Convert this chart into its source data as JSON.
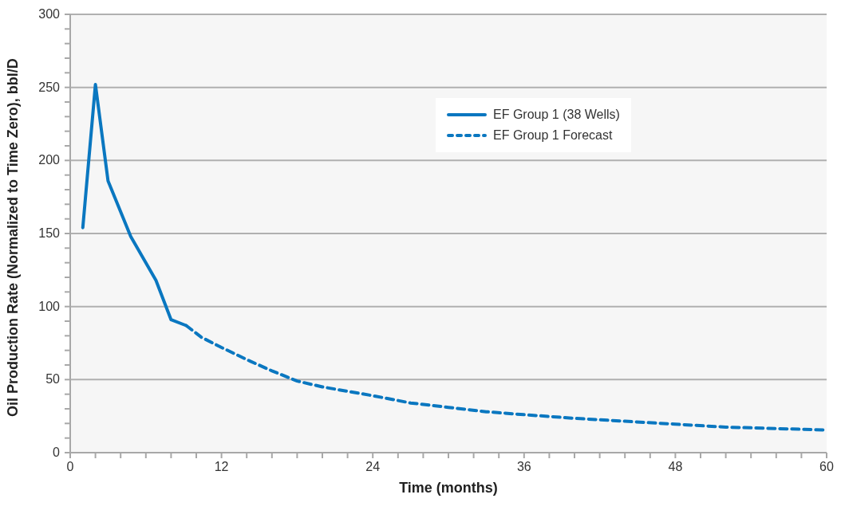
{
  "chart_data": {
    "type": "line",
    "xlabel": "Time (months)",
    "ylabel": "Oil Production Rate (Normalized to Time Zero), bbl/D",
    "xlim": [
      0,
      60
    ],
    "xticks": [
      0,
      {
        "value": 2,
        "label": null
      },
      {
        "value": 4,
        "label": null
      },
      {
        "value": 6,
        "label": null
      },
      {
        "value": 8,
        "label": null
      },
      {
        "value": 10,
        "label": null
      },
      12,
      {
        "value": 14,
        "label": null
      },
      {
        "value": 16,
        "label": null
      },
      {
        "value": 18,
        "label": null
      },
      {
        "value": 20,
        "label": null
      },
      {
        "value": 22,
        "label": null
      },
      24,
      {
        "value": 26,
        "label": null
      },
      {
        "value": 28,
        "label": null
      },
      {
        "value": 30,
        "label": null
      },
      {
        "value": 32,
        "label": null
      },
      {
        "value": 34,
        "label": null
      },
      36,
      {
        "value": 38,
        "label": null
      },
      {
        "value": 40,
        "label": null
      },
      {
        "value": 42,
        "label": null
      },
      {
        "value": 44,
        "label": null
      },
      {
        "value": 46,
        "label": null
      },
      48,
      {
        "value": 50,
        "label": null
      },
      {
        "value": 52,
        "label": null
      },
      {
        "value": 54,
        "label": null
      },
      {
        "value": 56,
        "label": null
      },
      {
        "value": 58,
        "label": null
      },
      60
    ],
    "ylim": [
      0,
      300
    ],
    "yticks": [
      0,
      {
        "value": 10,
        "label": null
      },
      {
        "value": 20,
        "label": null
      },
      {
        "value": 30,
        "label": null
      },
      {
        "value": 40,
        "label": null
      },
      50,
      {
        "value": 60,
        "label": null
      },
      {
        "value": 70,
        "label": null
      },
      {
        "value": 80,
        "label": null
      },
      {
        "value": 90,
        "label": null
      },
      100,
      {
        "value": 110,
        "label": null
      },
      {
        "value": 120,
        "label": null
      },
      {
        "value": 130,
        "label": null
      },
      {
        "value": 140,
        "label": null
      },
      150,
      {
        "value": 160,
        "label": null
      },
      {
        "value": 170,
        "label": null
      },
      {
        "value": 180,
        "label": null
      },
      {
        "value": 190,
        "label": null
      },
      200,
      {
        "value": 210,
        "label": null
      },
      {
        "value": 220,
        "label": null
      },
      {
        "value": 230,
        "label": null
      },
      {
        "value": 240,
        "label": null
      },
      250,
      {
        "value": 260,
        "label": null
      },
      {
        "value": 270,
        "label": null
      },
      {
        "value": 280,
        "label": null
      },
      {
        "value": 290,
        "label": null
      },
      300
    ],
    "grid": "y",
    "legend": "top",
    "marker": "none",
    "series": [
      {
        "name": "EF Group 1 (38 Wells)",
        "color": "#0a77c0",
        "line_style": "solid",
        "x": [
          1,
          2,
          3,
          4.8,
          6.8,
          8,
          9.2
        ],
        "values": [
          154,
          252,
          186,
          148,
          118,
          91,
          87
        ]
      },
      {
        "name": "EF Group 1 Forecast",
        "color": "#0a77c0",
        "line_style": "dashed",
        "x": [
          9.2,
          10.4,
          12,
          14.3,
          16,
          18,
          20,
          24,
          27,
          30,
          33,
          36,
          40,
          44,
          48,
          52,
          56,
          60
        ],
        "values": [
          87,
          79,
          72,
          62.5,
          56,
          49,
          45,
          39,
          34,
          31,
          28,
          26,
          23.5,
          21.5,
          19.5,
          17.5,
          16.5,
          15.5
        ]
      }
    ]
  }
}
